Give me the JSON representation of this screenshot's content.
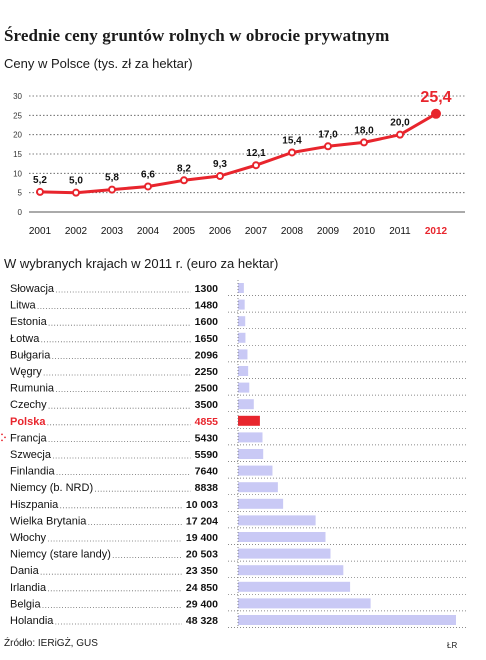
{
  "title": "Średnie ceny gruntów rolnych w obrocie prywatnym",
  "source": "Źródło: IERiGŻ, GUS",
  "credit": "ŁR",
  "colors": {
    "accent": "#e8252d",
    "bar": "#c9c9f5",
    "highlight_bar": "#e8252d",
    "grid": "#555555"
  },
  "chart_data": [
    {
      "type": "line",
      "title": "Ceny w Polsce (tys. zł za hektar)",
      "x": [
        "2001",
        "2002",
        "2003",
        "2004",
        "2005",
        "2006",
        "2007",
        "2008",
        "2009",
        "2010",
        "2011",
        "2012"
      ],
      "series": [
        {
          "values": [
            5.2,
            5.0,
            5.8,
            6.6,
            8.2,
            9.3,
            12.1,
            15.4,
            17.0,
            18.0,
            20.0,
            25.4
          ],
          "labels": [
            "5,2",
            "5,0",
            "5,8",
            "6,6",
            "8,2",
            "9,3",
            "12,1",
            "15,4",
            "17,0",
            "18,0",
            "20,0",
            "25,4"
          ]
        }
      ],
      "yticks": [
        "0",
        "5",
        "10",
        "15",
        "20",
        "25",
        "30"
      ],
      "ylim": [
        0,
        30
      ],
      "highlight_x": "2012",
      "grid": true
    },
    {
      "type": "bar",
      "title": "W wybranych krajach w 2011 r. (euro za hektar)",
      "categories": [
        "Słowacja",
        "Litwa",
        "Estonia",
        "Łotwa",
        "Bułgaria",
        "Węgry",
        "Rumunia",
        "Czechy",
        "Polska",
        "Francja",
        "Szwecja",
        "Finlandia",
        "Niemcy (b. NRD)",
        "Hiszpania",
        "Wielka Brytania",
        "Włochy",
        "Niemcy (stare landy)",
        "Dania",
        "Irlandia",
        "Belgia",
        "Holandia"
      ],
      "values": [
        1300,
        1480,
        1600,
        1650,
        2096,
        2250,
        2500,
        3500,
        4855,
        5430,
        5590,
        7640,
        8838,
        10003,
        17204,
        19400,
        20503,
        23350,
        24850,
        29400,
        48328
      ],
      "value_labels": [
        "1300",
        "1480",
        "1600",
        "1650",
        "2096",
        "2250",
        "2500",
        "3500",
        "4855",
        "5430",
        "5590",
        "7640",
        "8838",
        "10 003",
        "17 204",
        "19 400",
        "20 503",
        "23 350",
        "24 850",
        "29 400",
        "48 328"
      ],
      "highlight": "Polska",
      "orientation": "horizontal"
    }
  ]
}
